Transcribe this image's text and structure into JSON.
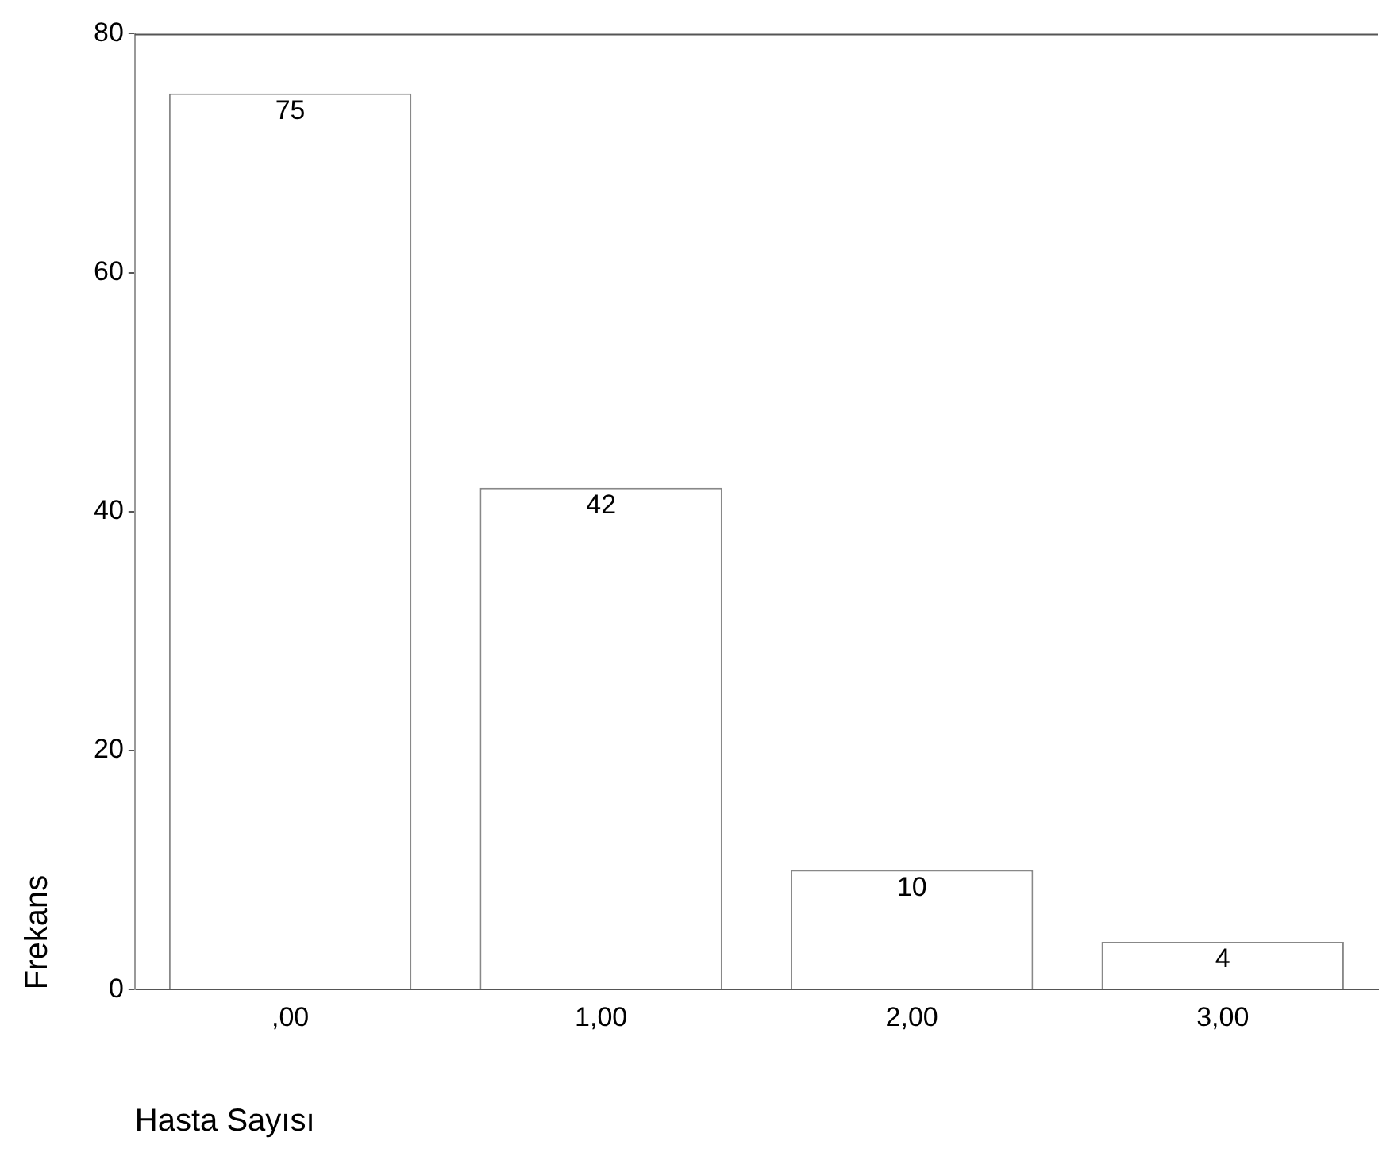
{
  "chart_data": {
    "type": "bar",
    "xlabel": "Hasta Sayısı",
    "ylabel": "Frekans",
    "categories": [
      ",00",
      "1,00",
      "2,00",
      "3,00"
    ],
    "values": [
      75,
      42,
      10,
      4
    ],
    "color": "#ffffff",
    "ylim": [
      0,
      80
    ],
    "yticks": [
      0,
      20,
      40,
      60,
      80
    ],
    "grid": false,
    "legend": false,
    "data_labels": true
  }
}
